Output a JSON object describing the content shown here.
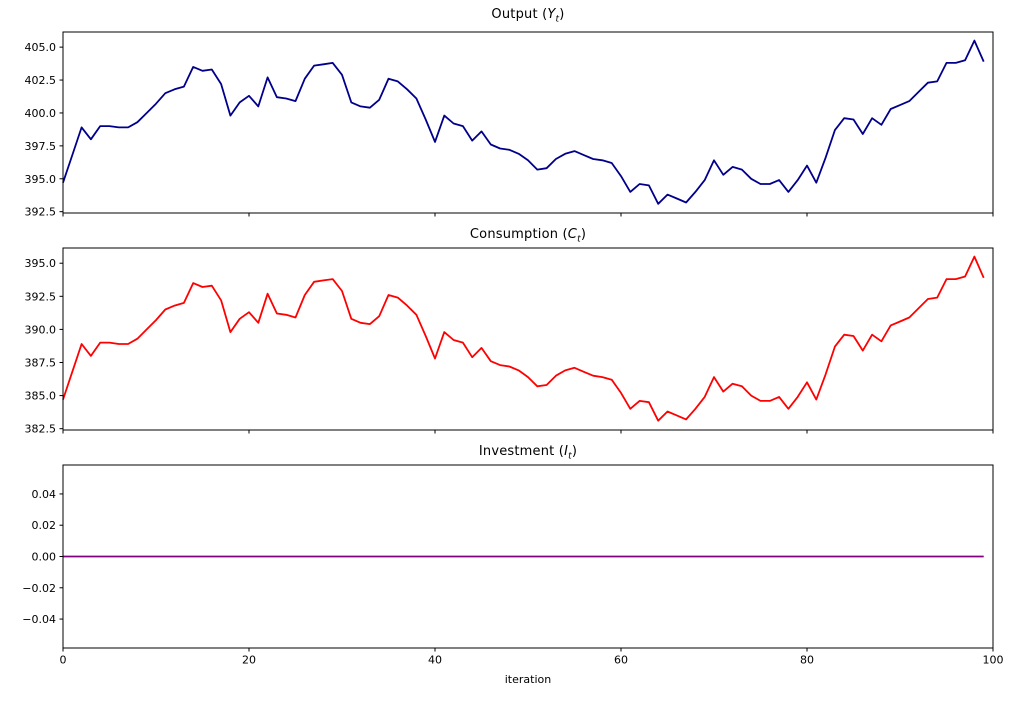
{
  "x_axis": {
    "label": "iteration",
    "ticks": [
      0,
      20,
      40,
      60,
      80,
      100
    ],
    "tick_labels": [
      "0",
      "20",
      "40",
      "60",
      "80",
      "100"
    ],
    "lim": [
      0,
      100
    ]
  },
  "chart_data": [
    {
      "id": "output",
      "type": "line",
      "title": "Output (Yt)",
      "title_parts": {
        "prefix": "Output (",
        "var": "Y",
        "sub": "t",
        "suffix": ")"
      },
      "color": "#00008B",
      "ylim": [
        392.4,
        406.15
      ],
      "yticks": [
        392.5,
        395.0,
        397.5,
        400.0,
        402.5,
        405.0
      ],
      "ytick_labels": [
        "392.5",
        "395.0",
        "397.5",
        "400.0",
        "402.5",
        "405.0"
      ],
      "values": [
        394.7,
        396.8,
        398.9,
        398.0,
        399.0,
        399.0,
        398.9,
        398.9,
        399.3,
        400.0,
        400.7,
        401.5,
        401.8,
        402.0,
        403.5,
        403.2,
        403.3,
        402.2,
        399.8,
        400.8,
        401.3,
        400.5,
        402.7,
        401.2,
        401.1,
        400.9,
        402.6,
        403.6,
        403.7,
        403.8,
        402.9,
        400.8,
        400.5,
        400.4,
        401.0,
        402.6,
        402.4,
        401.8,
        401.1,
        399.5,
        397.8,
        399.8,
        399.2,
        399.0,
        397.9,
        398.6,
        397.6,
        397.3,
        397.2,
        396.9,
        396.4,
        395.7,
        395.8,
        396.5,
        396.9,
        397.1,
        396.8,
        396.5,
        396.4,
        396.2,
        395.2,
        394.0,
        394.6,
        394.5,
        393.1,
        393.8,
        393.5,
        393.2,
        394.0,
        394.9,
        396.4,
        395.3,
        395.9,
        395.7,
        395.0,
        394.6,
        394.6,
        394.9,
        394.0,
        394.9,
        396.0,
        394.7,
        396.6,
        398.7,
        399.6,
        399.5,
        398.4,
        399.6,
        399.1,
        400.3,
        400.6,
        400.9,
        401.6,
        402.3,
        402.4,
        403.8,
        403.8,
        404.0,
        405.5,
        403.9
      ]
    },
    {
      "id": "consumption",
      "type": "line",
      "title": "Consumption (Ct)",
      "title_parts": {
        "prefix": "Consumption (",
        "var": "C",
        "sub": "t",
        "suffix": ")"
      },
      "color": "#FF0000",
      "ylim": [
        382.4,
        396.15
      ],
      "yticks": [
        382.5,
        385.0,
        387.5,
        390.0,
        392.5,
        395.0
      ],
      "ytick_labels": [
        "382.5",
        "385.0",
        "387.5",
        "390.0",
        "392.5",
        "395.0"
      ],
      "values": [
        384.7,
        386.8,
        388.9,
        388.0,
        389.0,
        389.0,
        388.9,
        388.9,
        389.3,
        390.0,
        390.7,
        391.5,
        391.8,
        392.0,
        393.5,
        393.2,
        393.3,
        392.2,
        389.8,
        390.8,
        391.3,
        390.5,
        392.7,
        391.2,
        391.1,
        390.9,
        392.6,
        393.6,
        393.7,
        393.8,
        392.9,
        390.8,
        390.5,
        390.4,
        391.0,
        392.6,
        392.4,
        391.8,
        391.1,
        389.5,
        387.8,
        389.8,
        389.2,
        389.0,
        387.9,
        388.6,
        387.6,
        387.3,
        387.2,
        386.9,
        386.4,
        385.7,
        385.8,
        386.5,
        386.9,
        387.1,
        386.8,
        386.5,
        386.4,
        386.2,
        385.2,
        384.0,
        384.6,
        384.5,
        383.1,
        383.8,
        383.5,
        383.2,
        384.0,
        384.9,
        386.4,
        385.3,
        385.9,
        385.7,
        385.0,
        384.6,
        384.6,
        384.9,
        384.0,
        384.9,
        386.0,
        384.7,
        386.6,
        388.7,
        389.6,
        389.5,
        388.4,
        389.6,
        389.1,
        390.3,
        390.6,
        390.9,
        391.6,
        392.3,
        392.4,
        393.8,
        393.8,
        394.0,
        395.5,
        393.9
      ]
    },
    {
      "id": "investment",
      "type": "line",
      "title": "Investment (It)",
      "title_parts": {
        "prefix": "Investment (",
        "var": "I",
        "sub": "t",
        "suffix": ")"
      },
      "color": "#800080",
      "ylim": [
        -0.0585,
        0.0585
      ],
      "yticks": [
        -0.04,
        -0.02,
        0.0,
        0.02,
        0.04
      ],
      "ytick_labels": [
        "−0.04",
        "−0.02",
        "0.00",
        "0.02",
        "0.04"
      ],
      "x": [
        0,
        99
      ],
      "values": [
        0.0,
        0.0
      ],
      "constant_value": 0.0
    }
  ]
}
